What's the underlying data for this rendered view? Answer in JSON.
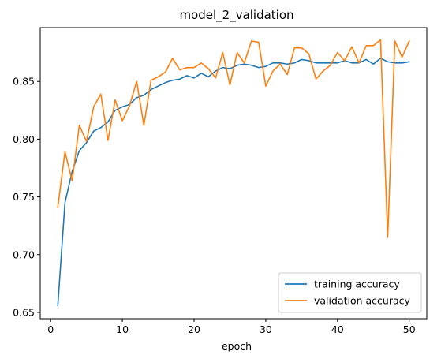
{
  "chart_data": {
    "type": "line",
    "title": "model_2_validation",
    "xlabel": "epoch",
    "ylabel": "",
    "xlim": [
      -1.45,
      52.45
    ],
    "ylim": [
      0.6445,
      0.8966
    ],
    "xticks": [
      0,
      10,
      20,
      30,
      40,
      50
    ],
    "yticks": [
      0.65,
      0.7,
      0.75,
      0.8,
      0.85
    ],
    "ytick_labels": [
      "0.65",
      "0.70",
      "0.75",
      "0.80",
      "0.85"
    ],
    "grid": false,
    "legend_position": "lower-right",
    "x": [
      1,
      2,
      3,
      4,
      5,
      6,
      7,
      8,
      9,
      10,
      11,
      12,
      13,
      14,
      15,
      16,
      17,
      18,
      19,
      20,
      21,
      22,
      23,
      24,
      25,
      26,
      27,
      28,
      29,
      30,
      31,
      32,
      33,
      34,
      35,
      36,
      37,
      38,
      39,
      40,
      41,
      42,
      43,
      44,
      45,
      46,
      47,
      48,
      49,
      50
    ],
    "series": [
      {
        "name": "training accuracy",
        "color": "#1f77b4",
        "values": [
          0.656,
          0.745,
          0.772,
          0.79,
          0.797,
          0.807,
          0.81,
          0.815,
          0.825,
          0.828,
          0.83,
          0.836,
          0.838,
          0.843,
          0.846,
          0.849,
          0.851,
          0.852,
          0.855,
          0.853,
          0.857,
          0.854,
          0.859,
          0.862,
          0.861,
          0.864,
          0.865,
          0.864,
          0.862,
          0.863,
          0.866,
          0.866,
          0.865,
          0.866,
          0.869,
          0.868,
          0.866,
          0.866,
          0.866,
          0.866,
          0.868,
          0.866,
          0.866,
          0.869,
          0.865,
          0.87,
          0.867,
          0.866,
          0.866,
          0.867
        ]
      },
      {
        "name": "validation accuracy",
        "color": "#ff7f0e",
        "values": [
          0.741,
          0.789,
          0.764,
          0.812,
          0.798,
          0.828,
          0.839,
          0.799,
          0.834,
          0.816,
          0.829,
          0.85,
          0.812,
          0.851,
          0.854,
          0.858,
          0.87,
          0.86,
          0.862,
          0.862,
          0.866,
          0.861,
          0.853,
          0.875,
          0.847,
          0.875,
          0.866,
          0.885,
          0.884,
          0.846,
          0.859,
          0.865,
          0.856,
          0.879,
          0.879,
          0.874,
          0.852,
          0.859,
          0.864,
          0.875,
          0.868,
          0.88,
          0.866,
          0.881,
          0.881,
          0.886,
          0.715,
          0.885,
          0.871,
          0.885
        ]
      }
    ]
  }
}
